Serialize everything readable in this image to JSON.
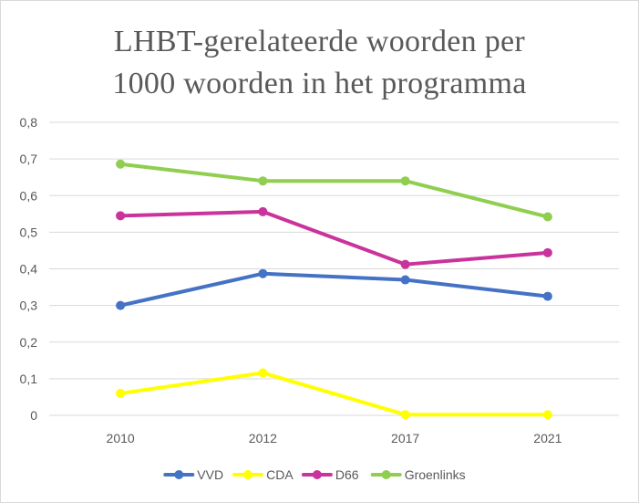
{
  "chart_data": {
    "type": "line",
    "title_lines": [
      "LHBT-gerelateerde woorden per",
      "1000 woorden in het programma"
    ],
    "categories": [
      "2010",
      "2012",
      "2017",
      "2021"
    ],
    "y_ticks": [
      "0",
      "0,1",
      "0,2",
      "0,3",
      "0,4",
      "0,5",
      "0,6",
      "0,7",
      "0,8"
    ],
    "ylim": [
      0,
      0.8
    ],
    "grid": true,
    "legend_position": "bottom",
    "series": [
      {
        "name": "VVD",
        "color": "#4472c4",
        "values": [
          0.3,
          0.387,
          0.37,
          0.325
        ]
      },
      {
        "name": "CDA",
        "color": "#ffff00",
        "values": [
          0.06,
          0.116,
          0.002,
          0.002
        ]
      },
      {
        "name": "D66",
        "color": "#c9339b",
        "values": [
          0.545,
          0.556,
          0.412,
          0.444
        ]
      },
      {
        "name": "Groenlinks",
        "color": "#8fce4e",
        "values": [
          0.686,
          0.64,
          0.64,
          0.542
        ]
      }
    ]
  }
}
